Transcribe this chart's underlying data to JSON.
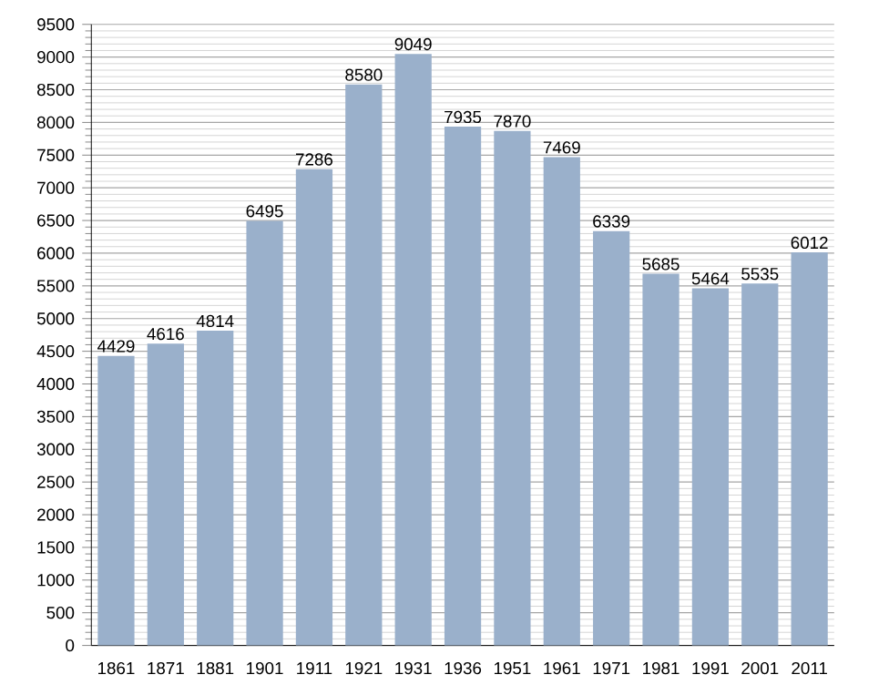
{
  "chart_data": {
    "type": "bar",
    "categories": [
      "1861",
      "1871",
      "1881",
      "1901",
      "1911",
      "1921",
      "1931",
      "1936",
      "1951",
      "1961",
      "1971",
      "1981",
      "1991",
      "2001",
      "2011"
    ],
    "values": [
      4429,
      4616,
      4814,
      6495,
      7286,
      8580,
      9049,
      7935,
      7870,
      7469,
      6339,
      5685,
      5464,
      5535,
      6012
    ],
    "color": "#9ab0cb",
    "ylim": [
      0,
      9500
    ],
    "yticks": [
      0,
      500,
      1000,
      1500,
      2000,
      2500,
      3000,
      3500,
      4000,
      4500,
      5000,
      5500,
      6000,
      6500,
      7000,
      7500,
      8000,
      8500,
      9000,
      9500
    ],
    "grid": "y",
    "data_labels": true
  }
}
